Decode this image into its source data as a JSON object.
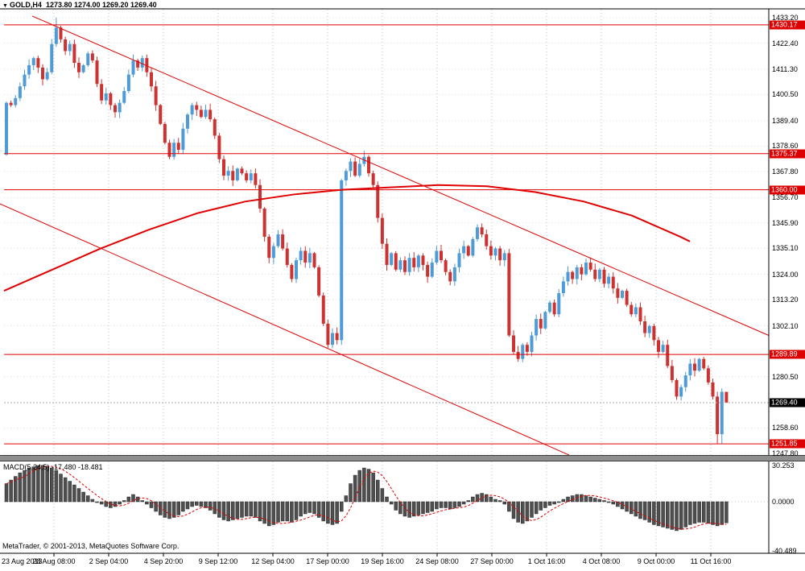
{
  "window": {
    "symbol": "GOLD,H4",
    "ohlc": "1273.80 1274.00 1269.20 1269.40",
    "copyright": "MetaTrader, © 2001-2013, MetaQuotes Software Corp."
  },
  "colors": {
    "bull": "#4e9bd7",
    "bear": "#cc3330",
    "line_red": "#e00000",
    "grid": "#c8c8c8",
    "hgrid": "#dcdcdc",
    "macd_bar": "#4f4f4f",
    "macd_signal": "#e00000",
    "level_box": "#dd0000",
    "current_box": "#000000"
  },
  "price_axis": {
    "ticks": [
      "1433.20",
      "1422.40",
      "1411.30",
      "1400.50",
      "1389.40",
      "1378.60",
      "1367.80",
      "1356.70",
      "1345.90",
      "1335.10",
      "1324.00",
      "1313.20",
      "1302.10",
      "1280.50",
      "1258.60",
      "1247.80"
    ],
    "levels": [
      {
        "label": "1430.17",
        "price": 1430.17
      },
      {
        "label": "1375.37",
        "price": 1375.37
      },
      {
        "label": "1360.00",
        "price": 1360.0
      },
      {
        "label": "1289.89",
        "price": 1289.89
      },
      {
        "label": "1251.85",
        "price": 1251.85
      }
    ],
    "current": {
      "label": "1269.40",
      "price": 1269.4
    }
  },
  "time_axis": {
    "labels": [
      "23 Aug 2013",
      "28 Aug 08:00",
      "2 Sep 04:00",
      "4 Sep 20:00",
      "9 Sep 12:00",
      "12 Sep 04:00",
      "17 Sep 00:00",
      "19 Sep 16:00",
      "24 Sep 08:00",
      "27 Sep 00:00",
      "1 Oct 16:00",
      "4 Oct 08:00",
      "9 Oct 00:00",
      "11 Oct 16:00"
    ]
  },
  "macd_panel": {
    "label": "MACD(5,34,5) -17.480 -18.481",
    "axis_labels": [
      "30.253",
      "0.0000",
      "-40.489"
    ]
  },
  "chart_data": {
    "type": "candlestick",
    "symbol": "GOLD",
    "timeframe": "H4",
    "title": "GOLD,H4",
    "ylim": [
      1247.8,
      1433.2
    ],
    "current_bar": {
      "open": 1273.8,
      "high": 1274.0,
      "low": 1269.2,
      "close": 1269.4
    },
    "first_open": 1375,
    "closes": [
      1397,
      1396,
      1399,
      1404,
      1409,
      1413,
      1416,
      1412,
      1407,
      1410,
      1422,
      1429,
      1424,
      1419,
      1422,
      1414,
      1410,
      1413,
      1418,
      1415,
      1405,
      1398,
      1401,
      1396,
      1393,
      1397,
      1402,
      1409,
      1415,
      1412,
      1416,
      1410,
      1404,
      1396,
      1388,
      1380,
      1374,
      1380,
      1377,
      1386,
      1392,
      1396,
      1394,
      1391,
      1394,
      1390,
      1383,
      1373,
      1366,
      1368,
      1364,
      1369,
      1367,
      1364,
      1367,
      1362,
      1352,
      1340,
      1331,
      1336,
      1341,
      1335,
      1328,
      1322,
      1330,
      1334,
      1329,
      1333,
      1327,
      1315,
      1303,
      1294,
      1299,
      1296,
      1364,
      1368,
      1372,
      1366,
      1371,
      1374,
      1367,
      1362,
      1348,
      1337,
      1328,
      1333,
      1326,
      1330,
      1325,
      1331,
      1327,
      1332,
      1328,
      1323,
      1329,
      1334,
      1330,
      1325,
      1321,
      1327,
      1333,
      1336,
      1332,
      1339,
      1344,
      1341,
      1336,
      1332,
      1335,
      1330,
      1333,
      1298,
      1291,
      1288,
      1294,
      1291,
      1298,
      1305,
      1301,
      1308,
      1312,
      1307,
      1316,
      1321,
      1325,
      1322,
      1327,
      1324,
      1329,
      1326,
      1322,
      1326,
      1320,
      1323,
      1318,
      1314,
      1317,
      1311,
      1307,
      1310,
      1304,
      1299,
      1302,
      1296,
      1291,
      1294,
      1285,
      1279,
      1272,
      1276,
      1281,
      1286,
      1283,
      1288,
      1284,
      1278,
      1272,
      1256,
      1274,
      1269.4
    ],
    "wick_overrides": {
      "11": {
        "high": 1433.2
      },
      "157": {
        "low": 1252.0
      },
      "158": {
        "low": 1251.85,
        "high": 1275.5
      },
      "159": {
        "high": 1274.0,
        "low": 1269.2
      }
    },
    "levels": [
      1430.17,
      1375.37,
      1360.0,
      1289.89,
      1251.85
    ],
    "trendlines": [
      {
        "x1": 40,
        "price1": 1433.9,
        "x2": 955,
        "price2": 1298.0
      },
      {
        "x1": 0,
        "price1": 1354.0,
        "x2": 707,
        "price2": 1247.1
      }
    ],
    "ma_points": [
      [
        5,
        1317
      ],
      [
        65,
        1326
      ],
      [
        125,
        1335
      ],
      [
        185,
        1343
      ],
      [
        245,
        1350
      ],
      [
        305,
        1355
      ],
      [
        365,
        1358
      ],
      [
        425,
        1360
      ],
      [
        485,
        1361
      ],
      [
        545,
        1362
      ],
      [
        605,
        1361.5
      ],
      [
        665,
        1359
      ],
      [
        725,
        1355
      ],
      [
        785,
        1349
      ],
      [
        845,
        1340
      ],
      [
        857,
        1338
      ]
    ],
    "macd": {
      "params": "5,34,5",
      "main": -17.48,
      "signal": -18.481,
      "range": [
        30.253,
        -40.489
      ],
      "histogram": [
        15,
        18,
        21,
        24,
        26,
        28,
        29,
        30,
        30.2,
        29.5,
        28,
        26,
        23,
        20,
        17,
        14,
        11,
        8,
        5,
        2,
        0,
        -2,
        -4,
        -5,
        -4,
        -2,
        1,
        4,
        6,
        4,
        1,
        -2,
        -5,
        -8,
        -11,
        -13,
        -14,
        -13,
        -11,
        -8,
        -6,
        -4,
        -3,
        -4,
        -5,
        -7,
        -10,
        -13,
        -15,
        -16,
        -15,
        -14,
        -13,
        -12,
        -12,
        -13,
        -16,
        -18,
        -20,
        -19,
        -17,
        -16,
        -16,
        -17,
        -15,
        -12,
        -10,
        -9,
        -10,
        -13,
        -16,
        -18,
        -19,
        -18,
        -8,
        5,
        15,
        22,
        26,
        28,
        27,
        24,
        18,
        11,
        4,
        -2,
        -7,
        -10,
        -12,
        -13,
        -12,
        -11,
        -10,
        -9,
        -8,
        -6,
        -5,
        -5,
        -6,
        -5,
        -4,
        -2,
        1,
        4,
        6,
        7,
        6,
        4,
        2,
        1,
        -2,
        -8,
        -14,
        -17,
        -18,
        -16,
        -13,
        -10,
        -7,
        -5,
        -3,
        -2,
        0,
        2,
        4,
        5,
        6,
        6,
        5,
        4,
        3,
        2,
        1,
        0,
        -2,
        -4,
        -6,
        -8,
        -10,
        -12,
        -14,
        -15,
        -17,
        -19,
        -20,
        -21,
        -22,
        -23,
        -24,
        -23,
        -21,
        -19,
        -18,
        -17,
        -17,
        -18,
        -19,
        -20,
        -19,
        -17.5
      ]
    }
  }
}
